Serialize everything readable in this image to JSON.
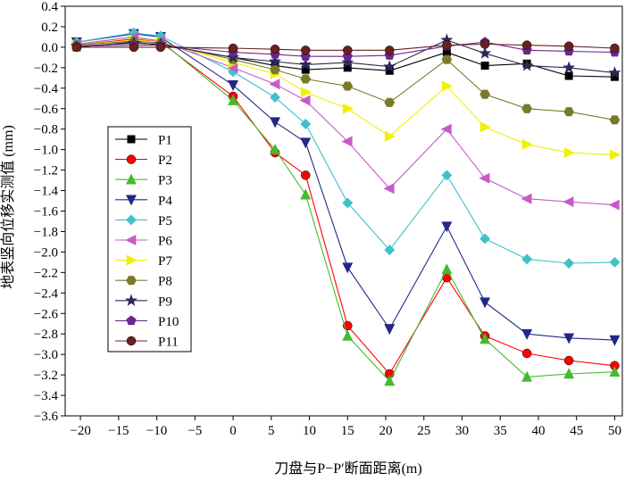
{
  "chart_data": {
    "type": "line",
    "title": "",
    "xlabel": "刀盘与P−P′断面距离(m)",
    "ylabel": "地表竖向位移实测值 (mm)",
    "xlim": [
      -22,
      51
    ],
    "ylim": [
      -3.6,
      0.4
    ],
    "x_ticks": [
      -20,
      -15,
      -10,
      -5,
      0,
      5,
      10,
      15,
      20,
      25,
      30,
      35,
      40,
      45,
      50
    ],
    "y_ticks": [
      0.4,
      0.2,
      0.0,
      -0.2,
      -0.4,
      -0.6,
      -0.8,
      -1.0,
      -1.2,
      -1.4,
      -1.6,
      -1.8,
      -2.0,
      -2.2,
      -2.4,
      -2.6,
      -2.8,
      -3.0,
      -3.2,
      -3.4,
      -3.6
    ],
    "x_tick_labels": [
      "−20",
      "−15",
      "−10",
      "−5",
      "0",
      "5",
      "10",
      "15",
      "20",
      "25",
      "30",
      "35",
      "40",
      "45",
      "50"
    ],
    "y_tick_labels": [
      "0.4",
      "0.2",
      "0.0",
      "−0.2",
      "−0.4",
      "−0.6",
      "−0.8",
      "−1.0",
      "−1.2",
      "−1.4",
      "−1.6",
      "−1.8",
      "−2.0",
      "−2.2",
      "−2.4",
      "−2.6",
      "−2.8",
      "−3.0",
      "−3.2",
      "−3.4",
      "−3.6"
    ],
    "x": [
      -20.5,
      -13,
      -9.5,
      0,
      5.5,
      9.5,
      15,
      20.5,
      28,
      33,
      38.5,
      44,
      50
    ],
    "legend_position": "left-center",
    "grid": false,
    "series": [
      {
        "name": "P1",
        "color": "#000000",
        "marker": "square",
        "values": [
          0.0,
          0.05,
          0.02,
          -0.1,
          -0.18,
          -0.22,
          -0.2,
          -0.23,
          -0.05,
          -0.18,
          -0.16,
          -0.28,
          -0.29
        ]
      },
      {
        "name": "P2",
        "color": "#ff0000",
        "marker": "circle",
        "values": [
          0.02,
          0.08,
          0.05,
          -0.48,
          -1.03,
          -1.25,
          -2.72,
          -3.19,
          -2.25,
          -2.82,
          -2.99,
          -3.06,
          -3.11
        ]
      },
      {
        "name": "P3",
        "color": "#44bb2e",
        "marker": "triangle-up",
        "values": [
          0.03,
          0.1,
          0.06,
          -0.52,
          -1.0,
          -1.44,
          -2.82,
          -3.26,
          -2.17,
          -2.85,
          -3.22,
          -3.19,
          -3.17
        ]
      },
      {
        "name": "P4",
        "color": "#232888",
        "marker": "triangle-down",
        "values": [
          0.05,
          0.13,
          0.1,
          -0.37,
          -0.73,
          -0.93,
          -2.15,
          -2.75,
          -1.75,
          -2.49,
          -2.8,
          -2.84,
          -2.86
        ]
      },
      {
        "name": "P5",
        "color": "#3fc1c9",
        "marker": "diamond",
        "values": [
          0.05,
          0.14,
          0.11,
          -0.24,
          -0.49,
          -0.75,
          -1.52,
          -1.98,
          -1.25,
          -1.87,
          -2.07,
          -2.11,
          -2.1
        ]
      },
      {
        "name": "P6",
        "color": "#c75ac8",
        "marker": "triangle-left",
        "values": [
          0.03,
          0.1,
          0.06,
          -0.2,
          -0.36,
          -0.52,
          -0.92,
          -1.38,
          -0.8,
          -1.28,
          -1.48,
          -1.51,
          -1.54
        ]
      },
      {
        "name": "P7",
        "color": "#f0f000",
        "marker": "triangle-right",
        "values": [
          0.02,
          0.07,
          0.05,
          -0.15,
          -0.26,
          -0.44,
          -0.6,
          -0.87,
          -0.38,
          -0.78,
          -0.95,
          -1.03,
          -1.05
        ]
      },
      {
        "name": "P8",
        "color": "#7a7a2a",
        "marker": "hexagon",
        "values": [
          0.02,
          0.06,
          0.04,
          -0.12,
          -0.22,
          -0.31,
          -0.38,
          -0.54,
          -0.12,
          -0.46,
          -0.6,
          -0.63,
          -0.71
        ]
      },
      {
        "name": "P9",
        "color": "#2a2a55",
        "marker": "star",
        "values": [
          0.01,
          0.04,
          0.03,
          -0.1,
          -0.14,
          -0.17,
          -0.15,
          -0.19,
          0.07,
          -0.06,
          -0.18,
          -0.2,
          -0.25
        ]
      },
      {
        "name": "P10",
        "color": "#6a2890",
        "marker": "pentagon",
        "values": [
          0.01,
          0.02,
          0.02,
          -0.05,
          -0.07,
          -0.09,
          -0.09,
          -0.08,
          0.01,
          0.05,
          -0.03,
          -0.04,
          -0.05
        ]
      },
      {
        "name": "P11",
        "color": "#6b2020",
        "marker": "circle",
        "values": [
          0.0,
          0.0,
          0.0,
          -0.01,
          -0.02,
          -0.03,
          -0.03,
          -0.03,
          0.02,
          0.03,
          0.02,
          0.01,
          -0.01
        ]
      }
    ]
  }
}
